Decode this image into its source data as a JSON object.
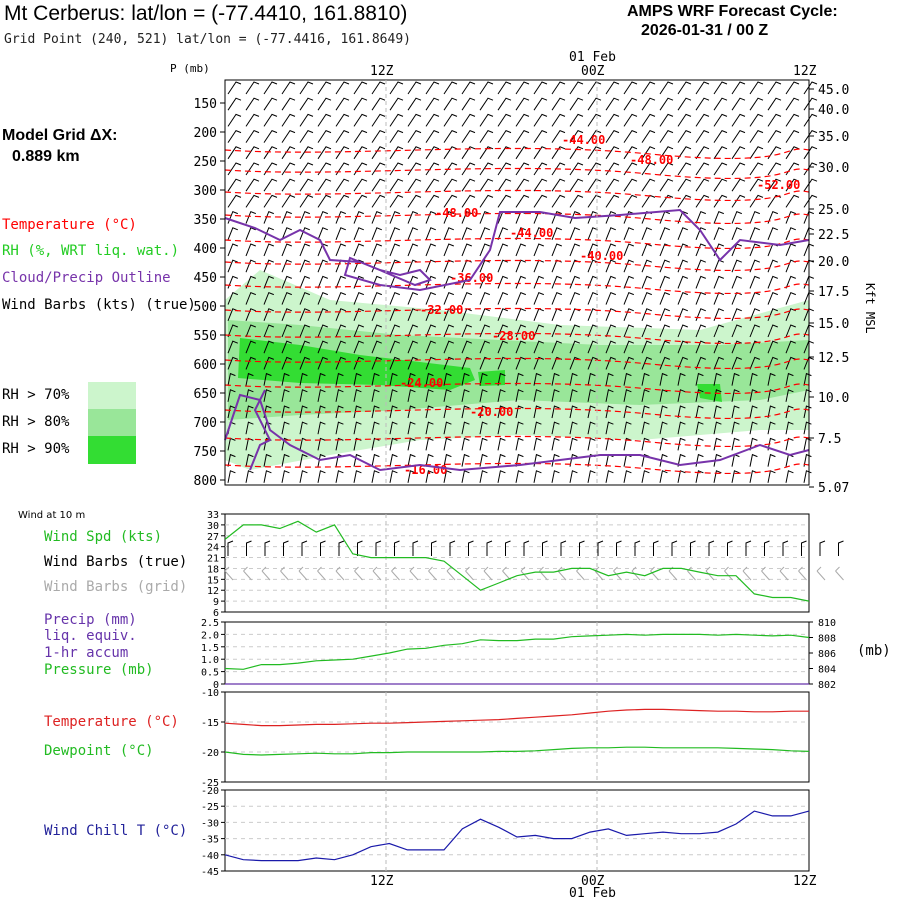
{
  "header": {
    "title": "Mt Cerberus:  lat/lon = (-77.4410, 161.8810)",
    "subtitle": "Grid Point (240, 521) lat/lon = (-77.4416, 161.8649)",
    "cycle_label": "AMPS WRF Forecast Cycle:",
    "cycle_value": "2026-01-31 / 00  Z"
  },
  "grid_info": {
    "label": "Model Grid ΔX:",
    "value": "0.889 km"
  },
  "legend": {
    "temperature": "Temperature (°C)",
    "rh": "RH (%, WRT liq. wat.)",
    "cloud": "Cloud/Precip Outline",
    "wind": "Wind Barbs (kts) (true)",
    "rh70": "RH > 70%",
    "rh80": "RH > 80%",
    "rh90": "RH > 90%"
  },
  "colors": {
    "temperature": "#ff0000",
    "rh_legend": "#22cc22",
    "cloud": "#7733aa",
    "rh70": "#ccf5cc",
    "rh80": "#99e699",
    "rh90": "#33dd33",
    "wind_speed": "#22bb22",
    "grid_barb": "#aaaaaa",
    "precip": "#6633aa",
    "pressure": "#22bb22",
    "temp_line": "#dd2222",
    "dew_line": "#22bb22",
    "chill_line": "#1a1aaa",
    "chill_label": "#22229a"
  },
  "time_axis": {
    "top_labels": [
      "12Z",
      "00Z",
      "12Z"
    ],
    "date_label": "01 Feb",
    "bottom_labels": [
      "12Z",
      "00Z",
      "12Z"
    ]
  },
  "p_axis_title": "P (mb)",
  "kft_axis_title": "Kft MSL",
  "wind10m_title": "Wind at 10 m",
  "panels": {
    "wind": {
      "speed": "Wind Spd (kts)",
      "barbs_true": "Wind Barbs (true)",
      "barbs_grid": "Wind Barbs (grid)"
    },
    "precip": {
      "l1": "Precip (mm)",
      "l2": "liq. equiv.",
      "l3": "1-hr accum",
      "l4": "Pressure (mb)",
      "mb_unit": "(mb)"
    },
    "temp": {
      "l1": "Temperature (°C)",
      "l2": "Dewpoint (°C)"
    },
    "chill": {
      "l1": "Wind Chill T (°C)"
    }
  },
  "chart_data": [
    {
      "type": "heatmap",
      "title": "Vertical cross-section time series",
      "ylabel": "P (mb)",
      "y2label": "Kft MSL",
      "yticks": [
        150,
        200,
        250,
        300,
        350,
        400,
        450,
        500,
        550,
        600,
        650,
        700,
        750,
        800
      ],
      "y2ticks": [
        "45.0",
        "40.0",
        "35.0",
        "30.0",
        "25.0",
        "22.5",
        "20.0",
        "17.5",
        "15.0",
        "12.5",
        "10.0",
        "7.5",
        "5.07"
      ],
      "temperature_contour_labels": [
        "-44.00",
        "-48.00",
        "-52.00",
        "-48.00",
        "-44.00",
        "-40.00",
        "-36.00",
        "-32.00",
        "-28.00",
        "-24.00",
        "-20.00",
        "-16.00"
      ]
    },
    {
      "type": "line",
      "title": "Wind Spd (kts)",
      "yticks": [
        33,
        30,
        27,
        24,
        21,
        18,
        15,
        12,
        9,
        6
      ],
      "ylim": [
        6,
        33
      ],
      "series": [
        {
          "name": "Wind Spd (kts)",
          "values": [
            26,
            30,
            30,
            29,
            31,
            28,
            30,
            22,
            21,
            21,
            21,
            21,
            20,
            16,
            12,
            14,
            16,
            17,
            17,
            18,
            18,
            16,
            17,
            16,
            18,
            18,
            17,
            16,
            16,
            11,
            10,
            10,
            9
          ]
        }
      ]
    },
    {
      "type": "line",
      "title": "Precip / Pressure",
      "yticks": [
        "2.5",
        "2.0",
        "1.5",
        "1.0",
        "0.5",
        "0"
      ],
      "ylim": [
        0,
        2.5
      ],
      "y2ticks": [
        "810",
        "808",
        "806",
        "804",
        "802"
      ],
      "y2lim": [
        802,
        810
      ],
      "series": [
        {
          "name": "Precip (mm)",
          "values": [
            0,
            0,
            0,
            0,
            0,
            0,
            0,
            0,
            0,
            0,
            0,
            0,
            0,
            0,
            0,
            0,
            0,
            0,
            0,
            0,
            0,
            0,
            0,
            0,
            0,
            0,
            0,
            0,
            0,
            0,
            0,
            0,
            0
          ]
        },
        {
          "name": "Pressure (mb)",
          "values": [
            804.0,
            803.9,
            804.5,
            804.5,
            804.7,
            805.0,
            805.1,
            805.2,
            805.6,
            806.0,
            806.5,
            806.6,
            807.0,
            807.2,
            807.7,
            807.6,
            807.6,
            807.8,
            807.8,
            808.1,
            808.2,
            808.3,
            808.4,
            808.3,
            808.4,
            808.4,
            808.4,
            808.3,
            808.4,
            808.3,
            808.2,
            808.3,
            808.0
          ]
        }
      ]
    },
    {
      "type": "line",
      "title": "Temperature / Dewpoint",
      "yticks": [
        -10,
        -15,
        -20,
        -25
      ],
      "ylim": [
        -25,
        -10
      ],
      "series": [
        {
          "name": "Temperature (°C)",
          "values": [
            -15.2,
            -15.4,
            -15.6,
            -15.6,
            -15.5,
            -15.4,
            -15.4,
            -15.3,
            -15.2,
            -15.2,
            -15.1,
            -15.0,
            -14.9,
            -14.8,
            -14.7,
            -14.6,
            -14.4,
            -14.2,
            -14.0,
            -13.8,
            -13.5,
            -13.2,
            -13.0,
            -12.9,
            -12.9,
            -13.0,
            -13.1,
            -13.2,
            -13.2,
            -13.3,
            -13.3,
            -13.2,
            -13.2
          ]
        },
        {
          "name": "Dewpoint (°C)",
          "values": [
            -20.0,
            -20.4,
            -20.5,
            -20.4,
            -20.3,
            -20.2,
            -20.3,
            -20.3,
            -20.1,
            -20.1,
            -20.0,
            -20.0,
            -20.0,
            -20.0,
            -20.0,
            -19.9,
            -19.9,
            -19.8,
            -19.6,
            -19.4,
            -19.3,
            -19.3,
            -19.2,
            -19.2,
            -19.3,
            -19.3,
            -19.3,
            -19.3,
            -19.4,
            -19.5,
            -19.6,
            -19.8,
            -19.9
          ]
        }
      ]
    },
    {
      "type": "line",
      "title": "Wind Chill T (°C)",
      "yticks": [
        -20,
        -25,
        -30,
        -35,
        -40,
        -45
      ],
      "ylim": [
        -45,
        -20
      ],
      "series": [
        {
          "name": "Wind Chill T (°C)",
          "values": [
            -40.0,
            -41.5,
            -41.8,
            -41.8,
            -41.8,
            -41.0,
            -41.5,
            -40.0,
            -37.5,
            -36.5,
            -38.5,
            -38.5,
            -38.5,
            -32.0,
            -29.0,
            -31.5,
            -34.5,
            -34.0,
            -35.0,
            -35.0,
            -33.0,
            -32.0,
            -34.0,
            -33.5,
            -33.0,
            -33.5,
            -33.5,
            -33.0,
            -30.5,
            -26.5,
            -28.0,
            -28.0,
            -26.5
          ]
        }
      ]
    }
  ]
}
